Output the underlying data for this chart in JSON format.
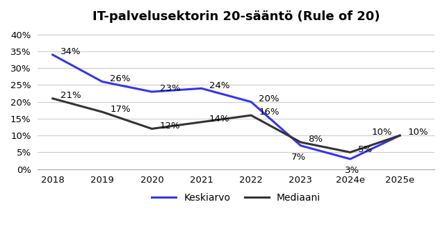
{
  "title": "IT-palvelusektorin 20-sääntö (Rule of 20)",
  "categories": [
    "2018",
    "2019",
    "2020",
    "2021",
    "2022",
    "2023",
    "2024e",
    "2025e"
  ],
  "keskiarvo": [
    34,
    26,
    23,
    24,
    20,
    7,
    3,
    10
  ],
  "mediaani": [
    21,
    17,
    12,
    14,
    16,
    8,
    5,
    10
  ],
  "keskiarvo_labels": [
    "34%",
    "26%",
    "23%",
    "24%",
    "20%",
    "7%",
    "3%",
    "10%"
  ],
  "mediaani_labels": [
    "21%",
    "17%",
    "12%",
    "14%",
    "16%",
    "8%",
    "5%",
    "10%"
  ],
  "keskiarvo_color": "#3535ee",
  "mediaani_color": "#333333",
  "background_color": "#ffffff",
  "grid_color": "#cccccc",
  "ylim": [
    0,
    42
  ],
  "yticks": [
    0,
    5,
    10,
    15,
    20,
    25,
    30,
    35,
    40
  ],
  "legend_labels": [
    "Keskiarvo",
    "Mediaani"
  ],
  "title_fontsize": 13,
  "label_fontsize": 9.5,
  "tick_fontsize": 9.5,
  "legend_fontsize": 10,
  "linewidth": 2.2
}
